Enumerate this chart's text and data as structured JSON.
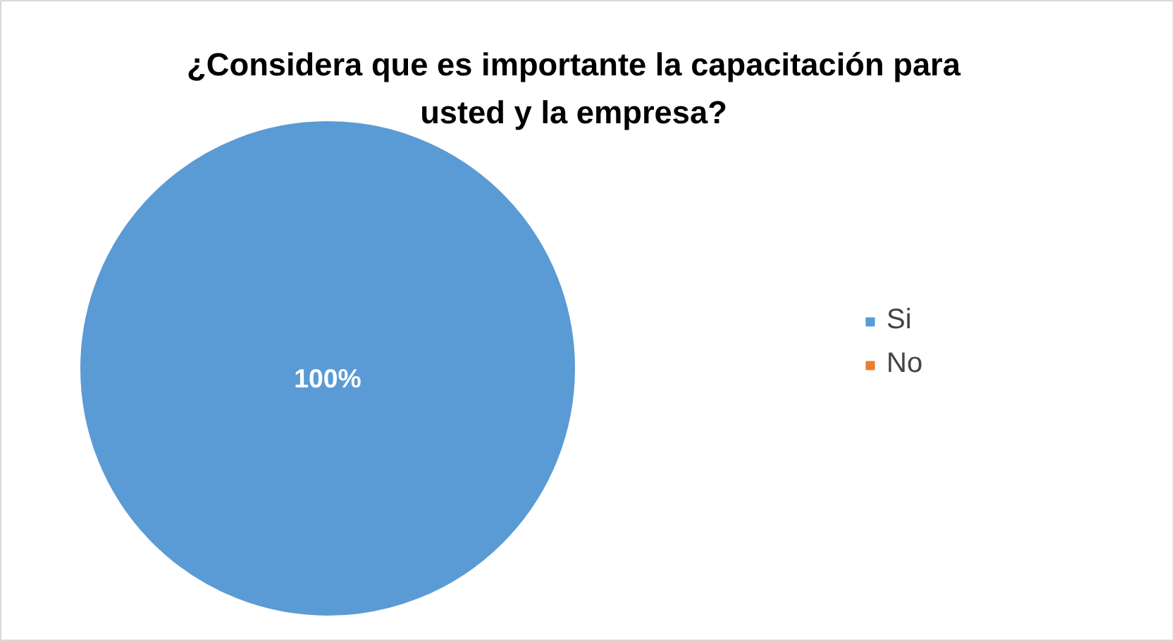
{
  "chart_data": {
    "type": "pie",
    "title": "¿Considera que es importante la capacitación para usted y la empresa?",
    "categories": [
      "Si",
      "No"
    ],
    "values": [
      100,
      0
    ],
    "colors": [
      "#5b9bd5",
      "#ed7d31"
    ],
    "value_labels": [
      "100%",
      null
    ],
    "legend": "right"
  }
}
